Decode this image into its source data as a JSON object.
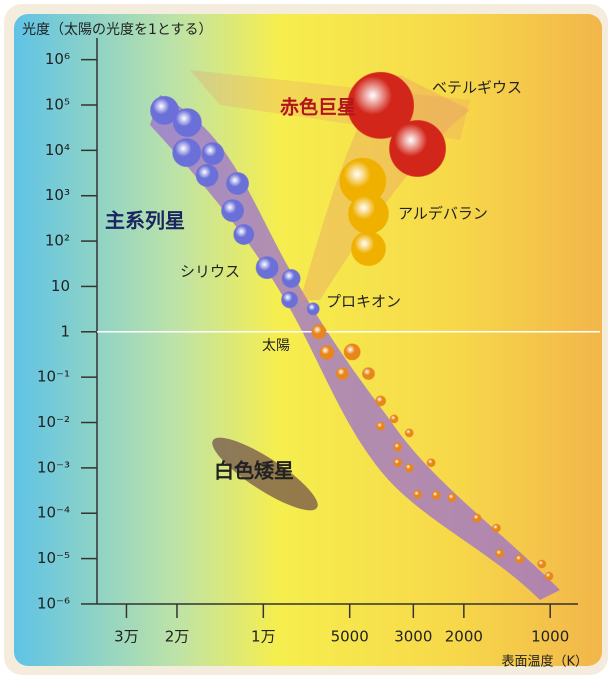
{
  "chart_data": {
    "type": "scatter",
    "title": "光度（太陽の光度を1とする）",
    "x_label": "表面温度（K）",
    "x_log": true,
    "y_log": true,
    "xlim": [
      38000,
      800
    ],
    "ylim": [
      4e-07,
      3000000
    ],
    "xticks": [
      {
        "value": 30000,
        "label": "3万"
      },
      {
        "value": 20000,
        "label": "2万"
      },
      {
        "value": 10000,
        "label": "1万"
      },
      5000,
      3000,
      2000,
      1000
    ],
    "yticks": [
      {
        "value": 1000000,
        "label": "10⁶"
      },
      {
        "value": 100000,
        "label": "10⁵"
      },
      {
        "value": 10000,
        "label": "10⁴"
      },
      {
        "value": 1000,
        "label": "10³"
      },
      {
        "value": 100,
        "label": "10²"
      },
      10,
      1,
      {
        "value": 0.1,
        "label": "10⁻¹"
      },
      {
        "value": 0.01,
        "label": "10⁻²"
      },
      {
        "value": 0.001,
        "label": "10⁻³"
      },
      {
        "value": 0.0001,
        "label": "10⁻⁴"
      },
      {
        "value": 1e-05,
        "label": "10⁻⁵"
      },
      {
        "value": 1e-06,
        "label": "10⁻⁶"
      }
    ],
    "reference_line": 1,
    "series": [
      {
        "color": "#6a70d8",
        "x": [
          22100,
          18400,
          18500,
          15000,
          15700,
          12300,
          12800,
          11700,
          9700,
          8000,
          8100,
          6700
        ],
        "values": [
          76000,
          41000,
          8900,
          8500,
          2800,
          1860,
          470,
          140,
          26,
          15,
          5.1,
          3.2
        ],
        "sizes": [
          14,
          14,
          14,
          11,
          11,
          11,
          11,
          10,
          11,
          9,
          8,
          6
        ]
      },
      {
        "color": "#e8861a",
        "x": [
          6400,
          6000,
          4900,
          5300,
          4300,
          3900,
          3500,
          3900,
          3400,
          3100,
          3400,
          3100,
          2600,
          2900,
          2500,
          2200,
          1800,
          1540,
          1500,
          1280,
          1070,
          1010
        ],
        "values": [
          1,
          0.35,
          0.36,
          0.12,
          0.12,
          0.03,
          0.012,
          0.0083,
          0.0029,
          0.0059,
          0.0013,
          0.001,
          0.0013,
          0.00026,
          0.00025,
          0.00022,
          7.8e-05,
          4.7e-05,
          1.3e-05,
          9.8e-06,
          7.6e-06,
          4.1e-06
        ],
        "sizes": [
          7,
          7,
          8,
          6,
          6,
          5,
          4,
          4,
          4,
          4,
          4,
          4,
          4,
          4,
          4,
          4,
          4,
          4,
          4,
          4,
          4,
          4
        ]
      },
      {
        "color": "#d2261a",
        "x": [
          3900,
          2900
        ],
        "values": [
          98000,
          11000
        ],
        "sizes": [
          33,
          28
        ]
      },
      {
        "color": "#f0b000",
        "x": [
          4500,
          4300,
          4300
        ],
        "values": [
          2100,
          400,
          68
        ],
        "sizes": [
          23,
          20,
          17
        ]
      }
    ],
    "annotations": [
      "赤色巨星",
      "主系列星",
      "白色矮星",
      "ベテルギウス",
      "アルデバラン",
      "シリウス",
      "プロキオン",
      "太陽"
    ]
  }
}
